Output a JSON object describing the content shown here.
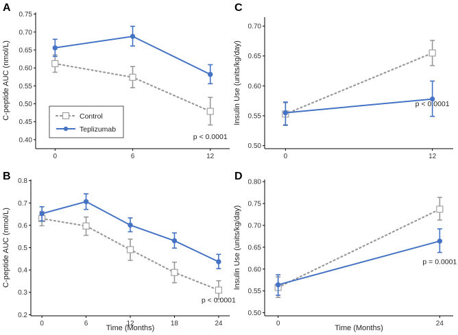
{
  "colors": {
    "control": "#999999",
    "teplizumab": "#4472C4"
  },
  "legend": {
    "control": "Control",
    "teplizumab": "Teplizumab"
  },
  "chart_data": [
    {
      "id": "A",
      "panel_label": "A",
      "type": "line",
      "ylabel": "C-peptide AUC (nmol/L)",
      "xlabel": "",
      "x": [
        0,
        6,
        12
      ],
      "xlim": [
        -1.5,
        13.5
      ],
      "ylim": [
        0.375,
        0.755
      ],
      "yticks": [
        0.4,
        0.45,
        0.5,
        0.55,
        0.6,
        0.65,
        0.7,
        0.75
      ],
      "yticklabels": [
        "0.40",
        "0.45",
        "0.50",
        "0.55",
        "0.60",
        "0.65",
        "0.70",
        "0.75"
      ],
      "xticks": [
        0,
        6,
        12
      ],
      "xticklabels": [
        "0",
        "6",
        "12"
      ],
      "annotation": "p < 0.0001",
      "annotation_at": [
        12,
        0.402
      ],
      "legend": true,
      "series": [
        {
          "name": "Control",
          "values": [
            0.612,
            0.574,
            0.479
          ],
          "lower": [
            0.588,
            0.545,
            0.441
          ],
          "upper": [
            0.636,
            0.604,
            0.518
          ]
        },
        {
          "name": "Teplizumab",
          "values": [
            0.656,
            0.688,
            0.582
          ],
          "lower": [
            0.632,
            0.661,
            0.556
          ],
          "upper": [
            0.68,
            0.716,
            0.609
          ]
        }
      ]
    },
    {
      "id": "C",
      "panel_label": "C",
      "type": "line",
      "ylabel": "Insulin Use (units/kg/day)",
      "xlabel": "",
      "x": [
        0,
        12
      ],
      "xlim": [
        -1.7,
        13.7
      ],
      "ylim": [
        0.495,
        0.715
      ],
      "yticks": [
        0.5,
        0.55,
        0.6,
        0.65,
        0.7
      ],
      "yticklabels": [
        "0.50",
        "0.55",
        "0.60",
        "0.65",
        "0.70"
      ],
      "xticks": [
        0,
        12
      ],
      "xticklabels": [
        "0",
        "12"
      ],
      "annotation": "p < 0.0001",
      "annotation_at": [
        12,
        0.566
      ],
      "legend": false,
      "series": [
        {
          "name": "Control",
          "values": [
            0.553,
            0.655
          ],
          "lower": [
            0.535,
            0.634
          ],
          "upper": [
            0.572,
            0.676
          ]
        },
        {
          "name": "Teplizumab",
          "values": [
            0.555,
            0.578
          ],
          "lower": [
            0.534,
            0.549
          ],
          "upper": [
            0.573,
            0.608
          ]
        }
      ]
    },
    {
      "id": "B",
      "panel_label": "B",
      "type": "line",
      "ylabel": "C-peptide AUC (nmol/L)",
      "xlabel": "Time (Months)",
      "x": [
        0,
        6,
        12,
        18,
        24
      ],
      "xlim": [
        -1.5,
        25.5
      ],
      "ylim": [
        0.195,
        0.805
      ],
      "yticks": [
        0.2,
        0.3,
        0.4,
        0.5,
        0.6,
        0.7,
        0.8
      ],
      "yticklabels": [
        "0.2",
        "0.3",
        "0.4",
        "0.5",
        "0.6",
        "0.7",
        "0.8"
      ],
      "xticks": [
        0,
        6,
        12,
        18,
        24
      ],
      "xticklabels": [
        "0",
        "6",
        "12",
        "18",
        "24"
      ],
      "annotation": "p < 0.0001",
      "annotation_at": [
        24,
        0.255
      ],
      "legend": false,
      "series": [
        {
          "name": "Control",
          "values": [
            0.63,
            0.597,
            0.491,
            0.389,
            0.31
          ],
          "lower": [
            0.598,
            0.555,
            0.443,
            0.343,
            0.27
          ],
          "upper": [
            0.662,
            0.637,
            0.538,
            0.435,
            0.352
          ]
        },
        {
          "name": "Teplizumab",
          "values": [
            0.652,
            0.706,
            0.601,
            0.531,
            0.437
          ],
          "lower": [
            0.62,
            0.671,
            0.571,
            0.498,
            0.406
          ],
          "upper": [
            0.683,
            0.741,
            0.633,
            0.566,
            0.47
          ]
        }
      ]
    },
    {
      "id": "D",
      "panel_label": "D",
      "type": "line",
      "ylabel": "Insulin Use (units/kg/day)",
      "xlabel": "Time (Months)",
      "x": [
        0,
        24
      ],
      "xlim": [
        -2.0,
        26.0
      ],
      "ylim": [
        0.493,
        0.805
      ],
      "yticks": [
        0.5,
        0.55,
        0.6,
        0.65,
        0.7,
        0.75,
        0.8
      ],
      "yticklabels": [
        "0.50",
        "0.55",
        "0.60",
        "0.65",
        "0.70",
        "0.75",
        "0.80"
      ],
      "xticks": [
        0,
        24
      ],
      "xticklabels": [
        "0",
        "24"
      ],
      "annotation": "p = 0.0001",
      "annotation_at": [
        24,
        0.611
      ],
      "legend": false,
      "series": [
        {
          "name": "Control",
          "values": [
            0.558,
            0.737
          ],
          "lower": [
            0.535,
            0.712
          ],
          "upper": [
            0.582,
            0.764
          ]
        },
        {
          "name": "Teplizumab",
          "values": [
            0.564,
            0.664
          ],
          "lower": [
            0.54,
            0.638
          ],
          "upper": [
            0.587,
            0.692
          ]
        }
      ]
    }
  ]
}
